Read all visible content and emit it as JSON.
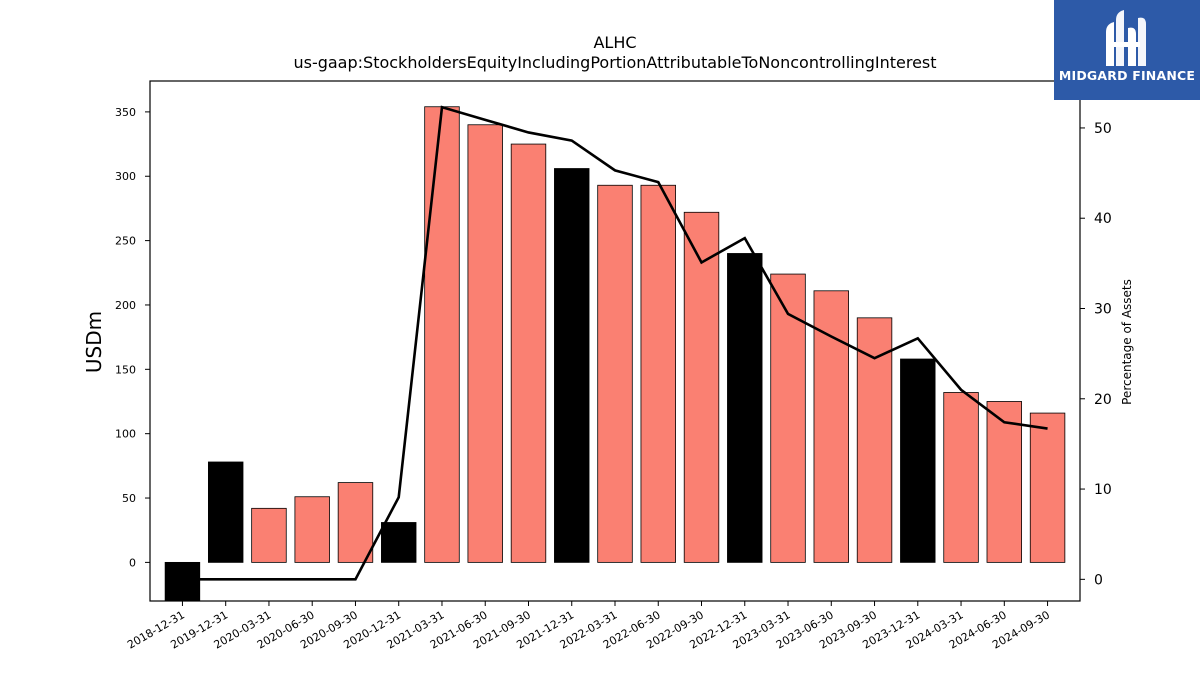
{
  "chart_data": {
    "type": "bar",
    "title": "ALHC",
    "subtitle": "us-gaap:StockholdersEquityIncludingPortionAttributableToNoncontrollingInterest",
    "ylabel": "USDm",
    "y2label": "Percentage of Assets",
    "ylim": [
      -30,
      374
    ],
    "y2lim": [
      -2.4,
      55.2
    ],
    "yticks": [
      0,
      50,
      100,
      150,
      200,
      250,
      300,
      350
    ],
    "y2ticks": [
      0,
      10,
      20,
      30,
      40,
      50
    ],
    "categories": [
      "2018-12-31",
      "2019-12-31",
      "2020-03-31",
      "2020-06-30",
      "2020-09-30",
      "2020-12-31",
      "2021-03-31",
      "2021-06-30",
      "2021-09-30",
      "2021-12-31",
      "2022-03-31",
      "2022-06-30",
      "2022-09-30",
      "2022-12-31",
      "2023-03-31",
      "2023-06-30",
      "2023-09-30",
      "2023-12-31",
      "2024-03-31",
      "2024-06-30",
      "2024-09-30"
    ],
    "series": [
      {
        "kind": "bar",
        "values": [
          -32,
          78,
          42,
          51,
          62,
          31,
          354,
          340,
          325,
          306,
          293,
          293,
          272,
          240,
          224,
          211,
          190,
          158,
          132,
          125,
          116
        ],
        "annual": [
          true,
          true,
          false,
          false,
          false,
          true,
          false,
          false,
          false,
          true,
          false,
          false,
          false,
          true,
          false,
          false,
          false,
          true,
          false,
          false,
          false
        ]
      },
      {
        "kind": "line",
        "axis": "right",
        "values": [
          0.0,
          0.0,
          0.0,
          0.0,
          0.0,
          9.1,
          52.3,
          50.9,
          49.5,
          48.6,
          45.3,
          44.0,
          35.1,
          37.8,
          29.4,
          26.9,
          24.5,
          26.7,
          21.0,
          17.4,
          16.7
        ]
      }
    ],
    "colors": {
      "annual_bar": "#000000",
      "quarter_bar": "#fa8072",
      "line": "#000000"
    }
  },
  "logo": {
    "text": "MIDGARD FINANCE",
    "background": "#2d5aa8"
  }
}
